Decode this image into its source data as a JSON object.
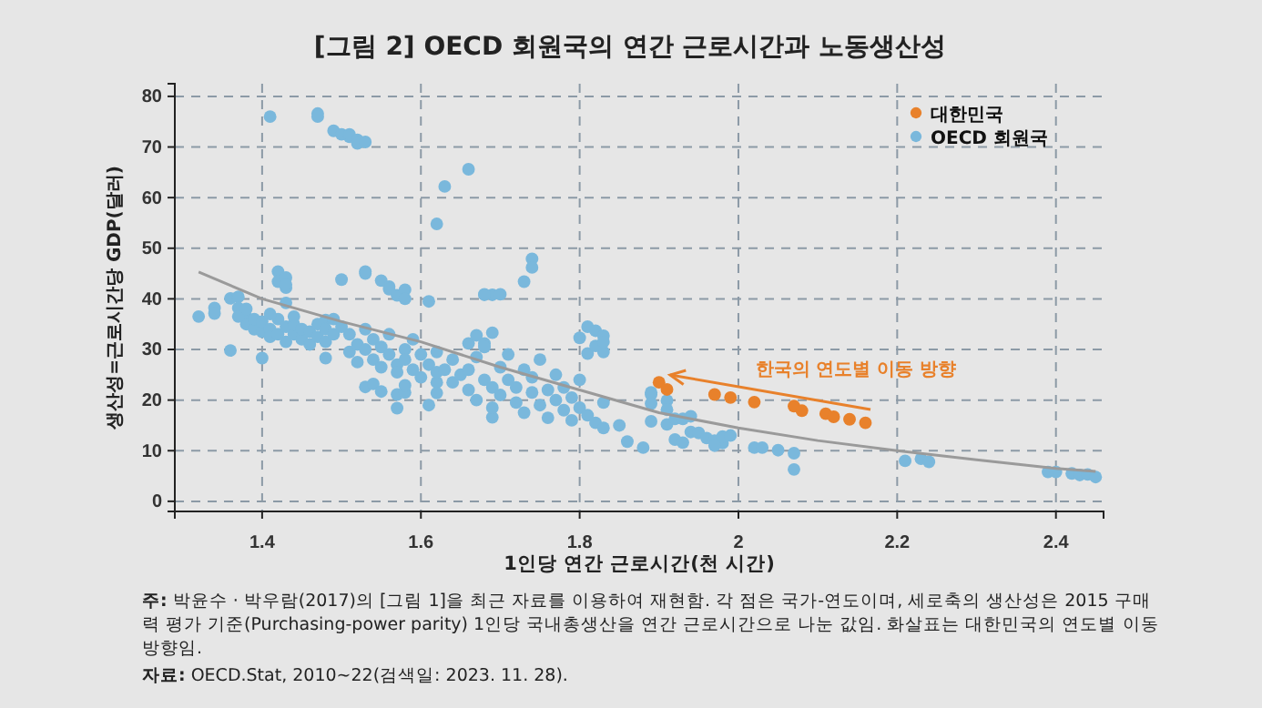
{
  "chart_data": {
    "type": "scatter",
    "title": "[그림 2] OECD 회원국의 연간 근로시간과 노동생산성",
    "xlabel": "1인당 연간 근로시간(천 시간)",
    "ylabel": "생산성=근로시간당 GDP(달러)",
    "xlim": [
      1.29,
      2.46
    ],
    "xticks": [
      1.4,
      1.6,
      1.8,
      2,
      2.2,
      2.4
    ],
    "ylim": [
      -2,
      82.5
    ],
    "yticks": [
      0,
      10,
      20,
      30,
      40,
      50,
      60,
      70,
      80
    ],
    "grid": true,
    "legend": "top right",
    "marker": "circle",
    "series": [
      {
        "name": "대한민국",
        "color": "#e8812b",
        "x": [
          1.9,
          1.91,
          1.97,
          1.99,
          2.02,
          2.07,
          2.08,
          2.11,
          2.12,
          2.14,
          2.16
        ],
        "values": [
          23.5,
          22.1,
          21.1,
          20.5,
          19.6,
          18.8,
          17.9,
          17.3,
          16.7,
          16.2,
          15.5
        ]
      },
      {
        "name": "OECD 회원국",
        "color": "#7ab8dc",
        "x": [
          1.41,
          1.47,
          1.47,
          1.49,
          1.5,
          1.51,
          1.51,
          1.52,
          1.52,
          1.53,
          1.62,
          1.63,
          1.66,
          1.32,
          1.34,
          1.34,
          1.36,
          1.36,
          1.37,
          1.37,
          1.38,
          1.4,
          1.42,
          1.42,
          1.43,
          1.43,
          1.43,
          1.43,
          1.5,
          1.53,
          1.53,
          1.55,
          1.56,
          1.56,
          1.57,
          1.58,
          1.58,
          1.61,
          1.48,
          1.53,
          1.54,
          1.55,
          1.57,
          1.57,
          1.58,
          1.58,
          1.61,
          1.48,
          1.62,
          1.62,
          1.66,
          1.68,
          1.69,
          1.68,
          1.67,
          1.69,
          1.38,
          1.39,
          1.39,
          1.4,
          1.4,
          1.41,
          1.41,
          1.42,
          1.42,
          1.43,
          1.43,
          1.44,
          1.44,
          1.45,
          1.45,
          1.46,
          1.46,
          1.47,
          1.47,
          1.48,
          1.48,
          1.49,
          1.49,
          1.5,
          1.37,
          1.38,
          1.41,
          1.44,
          1.51,
          1.51,
          1.52,
          1.52,
          1.53,
          1.53,
          1.54,
          1.54,
          1.55,
          1.55,
          1.56,
          1.56,
          1.57,
          1.57,
          1.58,
          1.58,
          1.59,
          1.59,
          1.6,
          1.6,
          1.61,
          1.62,
          1.62,
          1.63,
          1.64,
          1.64,
          1.65,
          1.66,
          1.66,
          1.67,
          1.67,
          1.68,
          1.68,
          1.69,
          1.69,
          1.7,
          1.7,
          1.71,
          1.71,
          1.72,
          1.72,
          1.73,
          1.73,
          1.74,
          1.74,
          1.75,
          1.75,
          1.76,
          1.76,
          1.77,
          1.77,
          1.78,
          1.78,
          1.79,
          1.79,
          1.8,
          1.8,
          1.81,
          1.82,
          1.83,
          1.83,
          1.74,
          1.74,
          1.73,
          1.68,
          1.7,
          1.81,
          1.82,
          1.83,
          1.8,
          1.81,
          1.83,
          1.82,
          1.83,
          1.69,
          1.85,
          1.86,
          1.88,
          1.89,
          1.89,
          1.89,
          1.89,
          1.91,
          1.91,
          1.91,
          1.92,
          1.93,
          1.94,
          1.94,
          1.92,
          1.93,
          1.95,
          1.96,
          1.97,
          1.98,
          1.98,
          1.99,
          1.97,
          2.02,
          2.03,
          2.05,
          2.07,
          2.07,
          2.21,
          2.23,
          2.24,
          2.39,
          2.4,
          2.42,
          2.43,
          2.44,
          2.45
        ],
        "values": [
          76,
          76.6,
          76,
          73.2,
          72.5,
          72,
          72.5,
          71.4,
          70.7,
          71,
          54.8,
          62.2,
          65.6,
          36.5,
          38.2,
          37.1,
          29.8,
          40.1,
          40.4,
          38.2,
          36.4,
          28.3,
          45.4,
          43.4,
          44.2,
          42.2,
          42.8,
          39.2,
          43.8,
          45.4,
          45,
          43.6,
          42.4,
          41.9,
          40.7,
          41.8,
          40,
          39.5,
          35.8,
          22.6,
          23.2,
          21.7,
          18.4,
          21.1,
          21.5,
          22.9,
          19,
          28.3,
          23.5,
          21.4,
          31.2,
          31.2,
          40.8,
          40.8,
          32.8,
          16.6,
          35,
          34,
          36,
          33.5,
          35.5,
          34,
          32.5,
          36,
          33,
          34.5,
          31.5,
          33,
          35,
          32,
          34,
          33.5,
          31,
          35,
          32.5,
          34,
          31.5,
          33,
          36,
          34.5,
          36.5,
          38,
          37,
          36.5,
          33,
          29.5,
          31,
          27.5,
          34,
          30,
          28,
          32,
          26.5,
          30.5,
          29,
          33,
          27,
          25.5,
          30,
          28,
          26,
          32,
          29,
          24.5,
          27,
          25.5,
          29.5,
          26,
          28,
          23.5,
          25,
          22,
          26,
          28.5,
          20,
          24,
          30.5,
          22.5,
          18.5,
          26.5,
          21,
          24,
          29,
          19.5,
          22.5,
          26,
          17.5,
          21.5,
          24.5,
          19,
          28,
          22,
          16.5,
          20,
          25,
          18,
          22.5,
          16,
          20.5,
          18.5,
          24,
          17,
          15.5,
          19.5,
          14.5,
          47.9,
          46.2,
          43.4,
          40.9,
          40.9,
          34.5,
          33.7,
          32.7,
          32.3,
          29.2,
          29.5,
          30.7,
          31.5,
          33.3,
          15,
          11.8,
          10.6,
          21.5,
          21.1,
          19.3,
          15.8,
          19.9,
          18.1,
          15.2,
          16.3,
          16.3,
          16.8,
          13.7,
          12.2,
          11.6,
          13.5,
          12.5,
          12,
          11.5,
          12.8,
          13,
          11,
          10.6,
          10.6,
          10.1,
          9.5,
          6.3,
          8,
          8.4,
          7.8,
          5.8,
          5.8,
          5.5,
          5.2,
          5.3,
          4.8
        ]
      },
      {
        "type": "line",
        "color": "#9a9a9a",
        "marker": "none",
        "x": [
          1.32,
          1.4,
          1.5,
          1.6,
          1.7,
          1.8,
          1.9,
          2,
          2.1,
          2.2,
          2.3,
          2.4,
          2.45
        ],
        "values": [
          45.3,
          40,
          35.5,
          31.5,
          26.5,
          22,
          17.5,
          14.5,
          12,
          10,
          8.2,
          6.5,
          5.9
        ]
      }
    ],
    "annotations": [
      "한국의 연도별 이동 방향",
      "주: 박윤수 · 박우람(2017)의 [그림 1]을 최근 자료를 이용하여 재현함. 각 점은 국가-연도이며, 세로축의 생산성은 2015 구매력 평가 기준(Purchasing-power parity) 1인당 국내총생산을 연간 근로시간으로 나눈 값임. 화살표는 대한민국의 연도별 이동 방향임.",
      "자료: OECD.Stat, 2010~22(검색일: 2023. 11. 28)."
    ]
  }
}
